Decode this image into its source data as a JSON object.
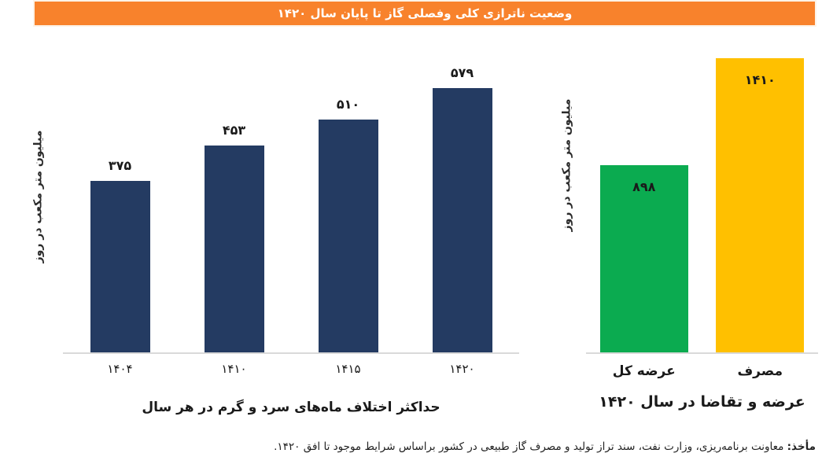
{
  "header": {
    "title": "وضعیت ناترازی کلی وفصلی گاز تا پایان سال ۱۴۲۰",
    "bg_color": "#F8822C",
    "text_color": "#FFFFFF"
  },
  "chart_data": [
    {
      "type": "bar",
      "name": "max-seasonal-difference",
      "title": "حداکثر اختلاف ماه‌های سرد و گرم در هر سال",
      "ylabel": "میلیون متر مکعب در روز",
      "categories": [
        "۱۴۰۴",
        "۱۴۱۰",
        "۱۴۱۵",
        "۱۴۲۰"
      ],
      "values": [
        375,
        453,
        510,
        579
      ],
      "value_labels": [
        "۳۷۵",
        "۴۵۳",
        "۵۱۰",
        "۵۷۹"
      ],
      "bar_color": "#243B62",
      "label_position": "above",
      "ylim": [
        0,
        620
      ],
      "grid": false,
      "legend": "none"
    },
    {
      "type": "bar",
      "name": "supply-demand-1420",
      "title": "عرضه و تقاضا در سال ۱۴۲۰",
      "ylabel": "میلیون متر مکعب در روز",
      "categories": [
        "عرضه کل",
        "مصرف"
      ],
      "values": [
        898,
        1410
      ],
      "value_labels": [
        "۸۹۸",
        "۱۴۱۰"
      ],
      "bar_colors": [
        "#0BAB50",
        "#FFC000"
      ],
      "label_position": "inside-top",
      "ylim": [
        0,
        1480
      ],
      "grid": false,
      "legend": "none"
    }
  ],
  "colors": {
    "header_orange": "#F8822C",
    "navy": "#243B62",
    "green": "#0BAB50",
    "yellow": "#FFC000",
    "axis_line": "#D9D9D9"
  },
  "footer": {
    "source_label": "مأخذ:",
    "source_text": " معاونت برنامه‌ریزی، وزارت نفت، سند تراز تولید و مصرف گاز طبیعی در کشور براساس شرایط موجود تا افق ۱۴۲۰."
  }
}
